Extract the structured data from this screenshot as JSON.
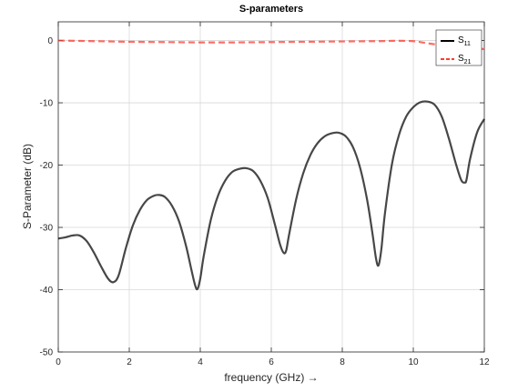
{
  "chart_data": {
    "type": "line",
    "title": "S-parameters",
    "xlabel": "frequency (GHz) →",
    "ylabel": "S-Parameter (dB)",
    "xlim": [
      0,
      12
    ],
    "ylim": [
      -50,
      3
    ],
    "xticks": [
      0,
      2,
      4,
      6,
      8,
      10,
      12
    ],
    "yticks": [
      -50,
      -40,
      -30,
      -20,
      -10,
      0
    ],
    "grid": true,
    "legend_position": "top-right",
    "series": [
      {
        "name": "S11",
        "label_main": "S",
        "label_sub": "11",
        "color": "#000000",
        "line_style": "solid",
        "x": [
          0,
          0.2,
          0.4,
          0.6,
          0.8,
          1.0,
          1.2,
          1.4,
          1.55,
          1.7,
          1.9,
          2.1,
          2.3,
          2.5,
          2.7,
          2.85,
          3.0,
          3.2,
          3.4,
          3.6,
          3.75,
          3.85,
          3.92,
          4.0,
          4.1,
          4.3,
          4.5,
          4.7,
          4.9,
          5.1,
          5.3,
          5.5,
          5.7,
          5.9,
          6.1,
          6.25,
          6.35,
          6.42,
          6.5,
          6.7,
          6.9,
          7.1,
          7.3,
          7.5,
          7.7,
          7.9,
          8.1,
          8.3,
          8.5,
          8.7,
          8.85,
          8.95,
          9.02,
          9.1,
          9.2,
          9.4,
          9.6,
          9.8,
          10.0,
          10.2,
          10.4,
          10.6,
          10.8,
          11.0,
          11.2,
          11.35,
          11.45,
          11.5,
          11.6,
          11.8,
          12.0
        ],
        "y": [
          -31.8,
          -31.6,
          -31.3,
          -31.3,
          -32.2,
          -34.0,
          -36.2,
          -38.2,
          -38.8,
          -37.7,
          -33.4,
          -29.7,
          -27.2,
          -25.6,
          -24.9,
          -24.8,
          -25.1,
          -26.5,
          -29.0,
          -33.0,
          -36.8,
          -39.2,
          -39.9,
          -38.2,
          -34.5,
          -28.7,
          -24.9,
          -22.5,
          -21.1,
          -20.6,
          -20.5,
          -21.0,
          -22.6,
          -25.3,
          -29.5,
          -32.8,
          -34.1,
          -33.7,
          -31.2,
          -25.5,
          -21.3,
          -18.4,
          -16.5,
          -15.4,
          -14.9,
          -14.8,
          -15.4,
          -17.1,
          -20.4,
          -25.6,
          -31.0,
          -35.0,
          -36.1,
          -33.5,
          -27.8,
          -19.8,
          -15.1,
          -12.2,
          -10.7,
          -9.9,
          -9.8,
          -10.3,
          -12.2,
          -15.7,
          -19.8,
          -22.4,
          -22.8,
          -22.3,
          -19.0,
          -14.7,
          -12.6
        ]
      },
      {
        "name": "S21",
        "label_main": "S",
        "label_sub": "21",
        "color": "#ff3b30",
        "line_style": "dashed",
        "x": [
          0,
          1,
          2,
          3,
          4,
          5,
          6,
          7,
          8,
          9,
          9.5,
          10,
          10.3,
          10.6,
          11,
          11.5,
          12
        ],
        "y": [
          0.0,
          -0.1,
          -0.2,
          -0.25,
          -0.3,
          -0.3,
          -0.25,
          -0.2,
          -0.15,
          -0.1,
          -0.05,
          -0.1,
          -0.35,
          -0.6,
          -0.8,
          -1.0,
          -1.4
        ]
      }
    ]
  }
}
